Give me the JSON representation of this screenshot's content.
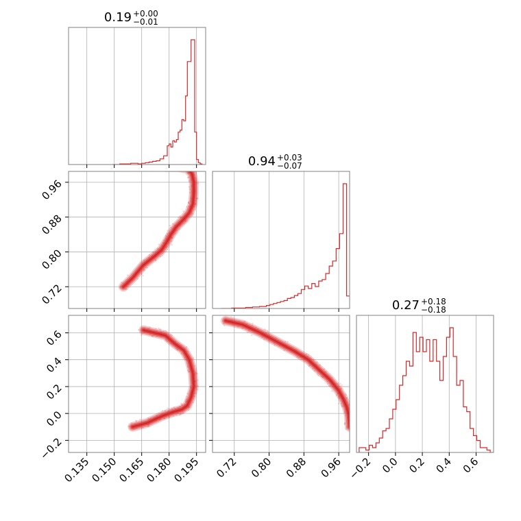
{
  "chart_data": {
    "type": "corner",
    "color": "#d62728",
    "grid": true,
    "parameters": [
      {
        "title": {
          "median": "0.19",
          "plus": "+0.00",
          "minus": "−0.01"
        },
        "range": [
          0.125,
          0.2
        ],
        "ticks": [
          0.135,
          0.15,
          0.165,
          0.18,
          0.195
        ],
        "tick_labels": [
          "0.135",
          "0.150",
          "0.165",
          "0.180",
          "0.195"
        ],
        "histogram": {
          "bin_edges": [
            0.149,
            0.151,
            0.153,
            0.155,
            0.157,
            0.159,
            0.161,
            0.163,
            0.165,
            0.167,
            0.169,
            0.171,
            0.173,
            0.175,
            0.177,
            0.179,
            0.18,
            0.181,
            0.182,
            0.183,
            0.184,
            0.185,
            0.186,
            0.187,
            0.188,
            0.189,
            0.19,
            0.191,
            0.192,
            0.193,
            0.194,
            0.195,
            0.196,
            0.197,
            0.198
          ],
          "counts": [
            0,
            0,
            1,
            1,
            1,
            2,
            2,
            1,
            2,
            3,
            4,
            5,
            6,
            9,
            14,
            30,
            33,
            28,
            38,
            36,
            40,
            52,
            55,
            72,
            70,
            110,
            165,
            165,
            200,
            200,
            52,
            8,
            3,
            1
          ]
        }
      },
      {
        "title": {
          "median": "0.94",
          "plus": "+0.03",
          "minus": "−0.07"
        },
        "range": [
          0.67,
          0.985
        ],
        "ticks": [
          0.72,
          0.8,
          0.88,
          0.96
        ],
        "tick_labels": [
          "0.72",
          "0.80",
          "0.88",
          "0.96"
        ],
        "histogram": {
          "bin_edges": [
            0.69,
            0.698,
            0.706,
            0.714,
            0.722,
            0.73,
            0.738,
            0.746,
            0.754,
            0.762,
            0.77,
            0.778,
            0.786,
            0.794,
            0.802,
            0.81,
            0.818,
            0.826,
            0.834,
            0.842,
            0.85,
            0.858,
            0.866,
            0.874,
            0.882,
            0.89,
            0.898,
            0.906,
            0.914,
            0.922,
            0.93,
            0.938,
            0.946,
            0.954,
            0.962,
            0.97,
            0.978,
            0.986
          ],
          "counts": [
            0,
            0,
            0,
            1,
            1,
            1,
            1,
            2,
            2,
            3,
            3,
            4,
            4,
            6,
            8,
            10,
            12,
            14,
            16,
            20,
            22,
            26,
            30,
            38,
            45,
            40,
            50,
            44,
            55,
            58,
            70,
            85,
            95,
            120,
            150,
            250,
            25
          ]
        }
      },
      {
        "title": {
          "median": "0.27",
          "plus": "+0.18",
          "minus": "−0.18"
        },
        "range": [
          -0.29,
          0.73
        ],
        "ticks": [
          -0.2,
          0.0,
          0.2,
          0.4,
          0.6
        ],
        "tick_labels": [
          "−0.2",
          "0.0",
          "0.2",
          "0.4",
          "0.6"
        ],
        "histogram": {
          "bin_edges": [
            -0.27,
            -0.245,
            -0.22,
            -0.195,
            -0.17,
            -0.145,
            -0.12,
            -0.095,
            -0.07,
            -0.045,
            -0.02,
            0.005,
            0.03,
            0.055,
            0.08,
            0.105,
            0.13,
            0.155,
            0.18,
            0.205,
            0.23,
            0.255,
            0.28,
            0.305,
            0.33,
            0.355,
            0.38,
            0.405,
            0.43,
            0.455,
            0.48,
            0.505,
            0.53,
            0.555,
            0.58,
            0.605,
            0.63,
            0.655,
            0.68,
            0.705,
            0.73
          ],
          "counts": [
            2,
            2,
            1,
            3,
            2,
            4,
            6,
            9,
            10,
            14,
            18,
            22,
            28,
            32,
            38,
            36,
            50,
            42,
            48,
            42,
            47,
            38,
            47,
            38,
            30,
            40,
            48,
            52,
            40,
            28,
            30,
            19,
            17,
            10,
            7,
            5,
            2,
            2,
            1,
            0
          ]
        }
      }
    ],
    "pairs": [
      {
        "x": 0,
        "y": 1,
        "ridge": [
          [
            0.178,
            0.995
          ],
          [
            0.185,
            0.995
          ],
          [
            0.19,
            0.991
          ],
          [
            0.1925,
            0.98
          ],
          [
            0.1935,
            0.96
          ],
          [
            0.1935,
            0.935
          ],
          [
            0.193,
            0.91
          ],
          [
            0.191,
            0.89
          ],
          [
            0.188,
            0.875
          ],
          [
            0.184,
            0.858
          ],
          [
            0.181,
            0.84
          ],
          [
            0.179,
            0.825
          ],
          [
            0.176,
            0.805
          ],
          [
            0.172,
            0.79
          ],
          [
            0.166,
            0.77
          ],
          [
            0.16,
            0.74
          ],
          [
            0.155,
            0.72
          ]
        ]
      },
      {
        "x": 0,
        "y": 2,
        "ridge": [
          [
            0.166,
            0.62
          ],
          [
            0.172,
            0.6
          ],
          [
            0.178,
            0.58
          ],
          [
            0.183,
            0.52
          ],
          [
            0.188,
            0.47
          ],
          [
            0.191,
            0.4
          ],
          [
            0.193,
            0.3
          ],
          [
            0.1935,
            0.2
          ],
          [
            0.192,
            0.12
          ],
          [
            0.19,
            0.06
          ],
          [
            0.187,
            0.03
          ],
          [
            0.182,
            0.01
          ],
          [
            0.176,
            -0.02
          ],
          [
            0.168,
            -0.07
          ],
          [
            0.16,
            -0.1
          ]
        ]
      },
      {
        "x": 1,
        "y": 2,
        "ridge": [
          [
            0.7,
            0.69
          ],
          [
            0.74,
            0.66
          ],
          [
            0.78,
            0.6
          ],
          [
            0.82,
            0.53
          ],
          [
            0.86,
            0.46
          ],
          [
            0.89,
            0.4
          ],
          [
            0.92,
            0.31
          ],
          [
            0.94,
            0.25
          ],
          [
            0.96,
            0.17
          ],
          [
            0.97,
            0.11
          ],
          [
            0.978,
            0.05
          ],
          [
            0.983,
            -0.01
          ],
          [
            0.985,
            -0.1
          ]
        ]
      }
    ]
  }
}
